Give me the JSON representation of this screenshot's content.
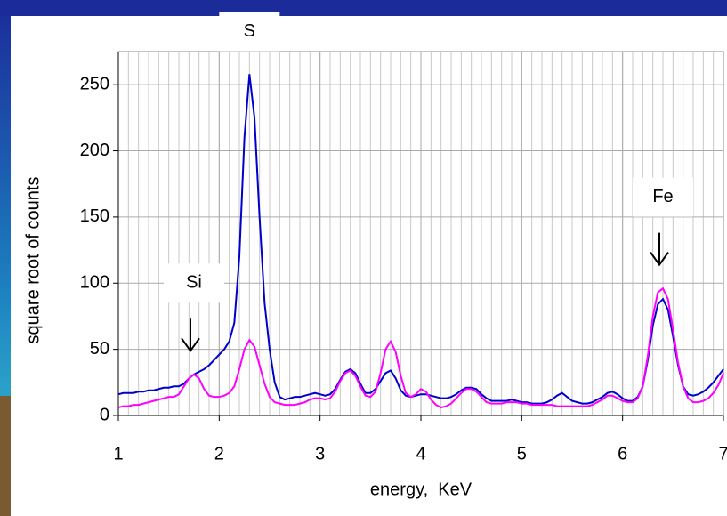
{
  "chart_data": {
    "type": "line",
    "x_label": "energy,  KeV",
    "y_label": "square root of counts",
    "annotations": [
      {
        "text": "S",
        "x": 2.3,
        "y": 290
      },
      {
        "text": "Si",
        "x": 1.75,
        "y": 100
      },
      {
        "text": "Fe",
        "x": 6.4,
        "y": 165
      }
    ],
    "x": [
      1,
      1.05,
      1.1,
      1.15,
      1.2,
      1.25,
      1.3,
      1.35,
      1.4,
      1.45,
      1.5,
      1.55,
      1.6,
      1.65,
      1.7,
      1.75,
      1.8,
      1.85,
      1.9,
      1.95,
      2,
      2.05,
      2.1,
      2.15,
      2.2,
      2.25,
      2.3,
      2.35,
      2.4,
      2.45,
      2.5,
      2.55,
      2.6,
      2.65,
      2.7,
      2.75,
      2.8,
      2.85,
      2.9,
      2.95,
      3,
      3.05,
      3.1,
      3.15,
      3.2,
      3.25,
      3.3,
      3.35,
      3.4,
      3.45,
      3.5,
      3.55,
      3.6,
      3.65,
      3.7,
      3.75,
      3.8,
      3.85,
      3.9,
      3.95,
      4,
      4.05,
      4.1,
      4.15,
      4.2,
      4.25,
      4.3,
      4.35,
      4.4,
      4.45,
      4.5,
      4.55,
      4.6,
      4.65,
      4.7,
      4.75,
      4.8,
      4.85,
      4.9,
      4.95,
      5,
      5.05,
      5.1,
      5.15,
      5.2,
      5.25,
      5.3,
      5.35,
      5.4,
      5.45,
      5.5,
      5.55,
      5.6,
      5.65,
      5.7,
      5.75,
      5.8,
      5.85,
      5.9,
      5.95,
      6,
      6.05,
      6.1,
      6.15,
      6.2,
      6.25,
      6.3,
      6.35,
      6.4,
      6.45,
      6.5,
      6.55,
      6.6,
      6.65,
      6.7,
      6.75,
      6.8,
      6.85,
      6.9,
      6.95,
      7
    ],
    "series": [
      {
        "color": "#0000cc",
        "values": [
          16,
          17,
          17,
          17,
          18,
          18,
          19,
          19,
          20,
          21,
          21,
          22,
          22,
          24,
          28,
          31,
          33,
          35,
          38,
          42,
          46,
          50,
          56,
          70,
          120,
          210,
          258,
          225,
          150,
          85,
          50,
          25,
          14,
          12,
          13,
          14,
          14,
          15,
          16,
          17,
          16,
          15,
          16,
          20,
          27,
          33,
          35,
          32,
          24,
          17,
          17,
          20,
          26,
          32,
          34,
          28,
          19,
          15,
          14,
          15,
          16,
          16,
          15,
          14,
          13,
          13,
          14,
          16,
          19,
          21,
          21,
          20,
          16,
          13,
          11,
          11,
          11,
          11,
          12,
          11,
          10,
          10,
          9,
          9,
          9,
          10,
          12,
          15,
          17,
          14,
          11,
          10,
          9,
          9,
          10,
          12,
          14,
          17,
          18,
          16,
          13,
          11,
          11,
          14,
          22,
          42,
          68,
          84,
          88,
          80,
          60,
          38,
          22,
          16,
          15,
          16,
          18,
          21,
          25,
          30,
          35
        ]
      },
      {
        "color": "#ff00ff",
        "values": [
          6,
          7,
          7,
          8,
          8,
          9,
          10,
          11,
          12,
          13,
          14,
          14,
          16,
          22,
          28,
          31,
          28,
          20,
          15,
          14,
          14,
          15,
          17,
          22,
          35,
          50,
          57,
          52,
          38,
          24,
          14,
          10,
          9,
          8,
          8,
          8,
          9,
          10,
          12,
          13,
          13,
          12,
          13,
          18,
          26,
          32,
          34,
          30,
          22,
          15,
          14,
          18,
          32,
          50,
          56,
          48,
          30,
          17,
          14,
          16,
          20,
          18,
          12,
          8,
          6,
          7,
          9,
          13,
          17,
          20,
          20,
          18,
          14,
          10,
          9,
          9,
          9,
          10,
          10,
          10,
          9,
          9,
          8,
          8,
          8,
          8,
          8,
          7,
          7,
          7,
          7,
          7,
          7,
          7,
          8,
          10,
          12,
          15,
          15,
          13,
          11,
          10,
          10,
          13,
          22,
          45,
          75,
          93,
          96,
          88,
          65,
          40,
          22,
          13,
          10,
          10,
          11,
          13,
          17,
          23,
          32
        ]
      }
    ],
    "xlim": [
      1,
      7
    ],
    "ylim": [
      0,
      275
    ],
    "xticks": [
      1,
      2,
      3,
      4,
      5,
      6,
      7
    ],
    "yticks": [
      0,
      50,
      100,
      150,
      200,
      250
    ],
    "x_grid_step": 0.1,
    "grid": true
  }
}
